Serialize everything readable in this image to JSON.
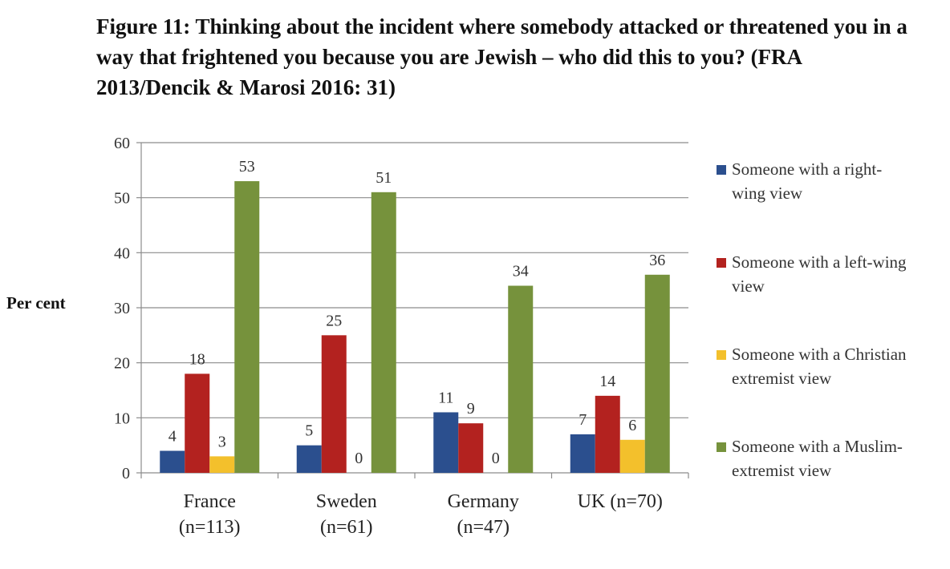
{
  "chart_data": {
    "type": "bar",
    "title": "Figure 11: Thinking about the incident where somebody attacked or threatened you in a way that frightened you because you are Jewish – who did this to you? (FRA 2013/Dencik & Marosi 2016: 31)",
    "ylabel": "Per cent",
    "xlabel": "",
    "ylim": [
      0,
      60
    ],
    "yticks": [
      0,
      10,
      20,
      30,
      40,
      50,
      60
    ],
    "grid": true,
    "legend_position": "right",
    "categories": [
      [
        "France",
        "(n=113)"
      ],
      [
        "Sweden",
        "(n=61)"
      ],
      [
        "Germany",
        "(n=47)"
      ],
      [
        "UK (n=70)"
      ]
    ],
    "series": [
      {
        "name": [
          "Someone with a right-",
          "wing view"
        ],
        "color": "#2b4f8e",
        "values": [
          4,
          5,
          11,
          7
        ]
      },
      {
        "name": [
          "Someone with a left-wing",
          "view"
        ],
        "color": "#b3221f",
        "values": [
          18,
          25,
          9,
          14
        ]
      },
      {
        "name": [
          "Someone with a Christian",
          "extremist view"
        ],
        "color": "#f3c02c",
        "values": [
          3,
          0,
          0,
          6
        ]
      },
      {
        "name": [
          "Someone with a Muslim-",
          "extremist view"
        ],
        "color": "#76923c",
        "values": [
          53,
          51,
          34,
          36
        ]
      }
    ]
  }
}
